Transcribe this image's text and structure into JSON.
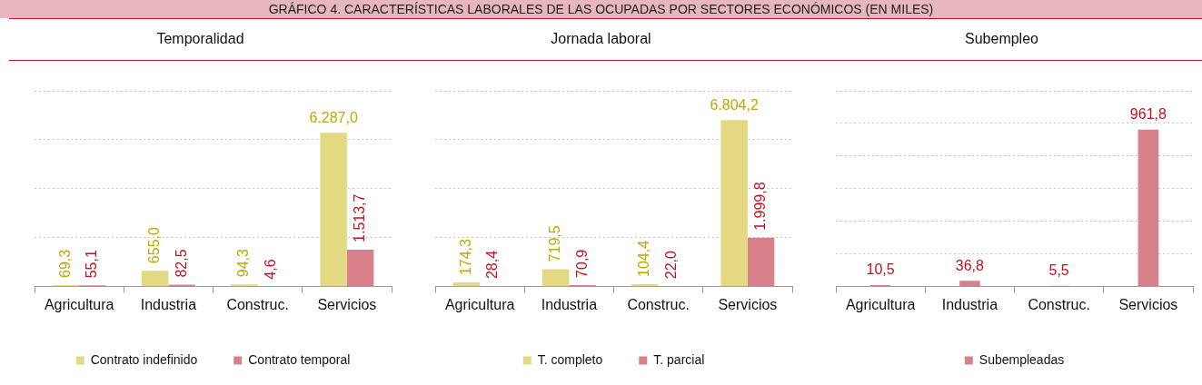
{
  "chart_data": [
    {
      "type": "other",
      "title": "GRÁFICO 4. CARACTERÍSTICAS LABORALES DE LAS OCUPADAS POR SECTORES ECONÓMICOS (EN MILES)"
    },
    {
      "type": "bar",
      "title": "Temporalidad",
      "categories": [
        "Agricultura",
        "Industria",
        "Construc.",
        "Servicios"
      ],
      "series": [
        {
          "name": "Contrato indefinido",
          "color": "#e3d982",
          "values": [
            69.3,
            655.0,
            94.3,
            6287.0
          ],
          "value_labels": [
            "69,3",
            "655,0",
            "94,3",
            "6.287,0"
          ]
        },
        {
          "name": "Contrato temporal",
          "color": "#d9818b",
          "values": [
            55.1,
            82.5,
            4.6,
            1513.7
          ],
          "value_labels": [
            "55,1",
            "82,5",
            "4,6",
            "1.513,7"
          ]
        }
      ],
      "ylim": [
        0,
        8000
      ],
      "yticks": [
        {
          "value": 0,
          "label": null
        },
        {
          "value": 2000,
          "label": null
        },
        {
          "value": 4000,
          "label": null
        },
        {
          "value": 6000,
          "label": null
        },
        {
          "value": 8000,
          "label": null
        }
      ],
      "grid": "y",
      "legend": "bottom",
      "tick_labels": "x"
    },
    {
      "type": "bar",
      "title": "Jornada laboral",
      "categories": [
        "Agricultura",
        "Industria",
        "Construc.",
        "Servicios"
      ],
      "series": [
        {
          "name": "T. completo",
          "color": "#e3d982",
          "values": [
            174.3,
            719.5,
            104.4,
            6804.2
          ],
          "value_labels": [
            "174,3",
            "719,5",
            "104,4",
            "6.804,2"
          ]
        },
        {
          "name": "T. parcial",
          "color": "#d9818b",
          "values": [
            28.4,
            70.9,
            22.0,
            1999.8
          ],
          "value_labels": [
            "28,4",
            "70,9",
            "22,0",
            "1.999,8"
          ]
        }
      ],
      "ylim": [
        0,
        8000
      ],
      "yticks": [
        {
          "value": 0,
          "label": null
        },
        {
          "value": 2000,
          "label": null
        },
        {
          "value": 4000,
          "label": null
        },
        {
          "value": 6000,
          "label": null
        },
        {
          "value": 8000,
          "label": null
        }
      ],
      "grid": "y",
      "legend": "bottom",
      "tick_labels": "x"
    },
    {
      "type": "bar",
      "title": "Subempleo",
      "categories": [
        "Agricultura",
        "Industria",
        "Construc.",
        "Servicios"
      ],
      "series": [
        {
          "name": "Subempleadas",
          "color": "#d9818b",
          "values": [
            10.5,
            36.8,
            5.5,
            961.8
          ],
          "value_labels": [
            "10,5",
            "36,8",
            "5,5",
            "961,8"
          ]
        }
      ],
      "ylim": [
        0,
        1200
      ],
      "yticks": [
        {
          "value": 0,
          "label": null
        },
        {
          "value": 200,
          "label": null
        },
        {
          "value": 400,
          "label": null
        },
        {
          "value": 600,
          "label": null
        },
        {
          "value": 800,
          "label": null
        },
        {
          "value": 1000,
          "label": null
        },
        {
          "value": 1200,
          "label": null
        }
      ],
      "grid": "y",
      "legend": "bottom",
      "tick_labels": "x"
    }
  ]
}
